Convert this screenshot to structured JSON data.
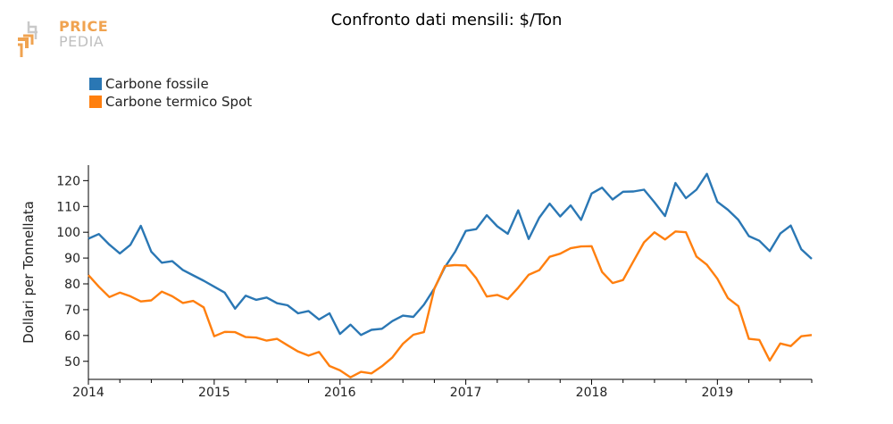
{
  "title": "Confronto dati mensili: $/Ton",
  "logo": {
    "line1": "PRICE",
    "line2": "PEDIA"
  },
  "colors": {
    "series1": "#2a77b4",
    "series2": "#ff7f0e",
    "axis": "#000000",
    "logo_orange": "#f0a350",
    "logo_gray": "#c0c0c0"
  },
  "chart_data": {
    "type": "line",
    "title": "Confronto dati mensili: $/Ton",
    "xlabel": "",
    "ylabel": "Dollari per Tonnellata",
    "xlim": [
      "2014-01",
      "2019-10"
    ],
    "ylim": [
      43,
      126
    ],
    "x_ticks": [
      "2014",
      "2015",
      "2016",
      "2017",
      "2018",
      "2019"
    ],
    "y_ticks": [
      50,
      60,
      70,
      80,
      90,
      100,
      110,
      120
    ],
    "legend_position": "top-left",
    "grid": false,
    "x": [
      "2014-01",
      "2014-02",
      "2014-03",
      "2014-04",
      "2014-05",
      "2014-06",
      "2014-07",
      "2014-08",
      "2014-09",
      "2014-10",
      "2014-11",
      "2014-12",
      "2015-01",
      "2015-02",
      "2015-03",
      "2015-04",
      "2015-05",
      "2015-06",
      "2015-07",
      "2015-08",
      "2015-09",
      "2015-10",
      "2015-11",
      "2015-12",
      "2016-01",
      "2016-02",
      "2016-03",
      "2016-04",
      "2016-05",
      "2016-06",
      "2016-07",
      "2016-08",
      "2016-09",
      "2016-10",
      "2016-11",
      "2016-12",
      "2017-01",
      "2017-02",
      "2017-03",
      "2017-04",
      "2017-05",
      "2017-06",
      "2017-07",
      "2017-08",
      "2017-09",
      "2017-10",
      "2017-11",
      "2017-12",
      "2018-01",
      "2018-02",
      "2018-03",
      "2018-04",
      "2018-05",
      "2018-06",
      "2018-07",
      "2018-08",
      "2018-09",
      "2018-10",
      "2018-11",
      "2018-12",
      "2019-01",
      "2019-02",
      "2019-03",
      "2019-04",
      "2019-05",
      "2019-06",
      "2019-07",
      "2019-08",
      "2019-09",
      "2019-10"
    ],
    "series": [
      {
        "name": "Carbone fossile",
        "values": [
          97.5,
          99.3,
          95.2,
          91.8,
          95.1,
          102.5,
          92.5,
          88.2,
          88.8,
          85.4,
          83.3,
          81.2,
          78.9,
          76.6,
          70.4,
          75.4,
          73.8,
          74.7,
          72.5,
          71.7,
          68.6,
          69.5,
          66.2,
          68.6,
          60.6,
          64.2,
          60.2,
          62.2,
          62.6,
          65.6,
          67.7,
          67.2,
          71.9,
          78.2,
          86.4,
          92.6,
          100.5,
          101.2,
          106.6,
          102.3,
          99.4,
          108.5,
          97.4,
          105.6,
          111.1,
          106.1,
          110.4,
          104.8,
          115.0,
          117.3,
          112.7,
          115.7,
          115.8,
          116.5,
          111.6,
          106.3,
          119.1,
          113.2,
          116.5,
          122.6,
          111.8,
          108.7,
          104.8,
          98.5,
          96.7,
          92.7,
          99.5,
          102.6,
          93.4,
          89.7
        ]
      },
      {
        "name": "Carbone termico Spot",
        "values": [
          83.4,
          78.9,
          74.9,
          76.6,
          75.2,
          73.2,
          73.6,
          77.0,
          75.2,
          72.6,
          73.4,
          70.9,
          59.7,
          61.4,
          61.3,
          59.4,
          59.2,
          58.0,
          58.7,
          56.2,
          53.8,
          52.2,
          53.6,
          48.2,
          46.5,
          43.8,
          45.9,
          45.3,
          48.1,
          51.5,
          56.8,
          60.3,
          61.3,
          78.1,
          86.9,
          87.3,
          87.1,
          82.2,
          75.1,
          75.7,
          74.1,
          78.5,
          83.5,
          85.3,
          90.5,
          91.7,
          93.8,
          94.5,
          94.6,
          84.6,
          80.3,
          81.5,
          88.8,
          96.1,
          100.0,
          97.2,
          100.3,
          100.0,
          90.6,
          87.4,
          82.0,
          74.5,
          71.4,
          58.7,
          58.3,
          50.3,
          56.9,
          55.9,
          59.7,
          60.2
        ]
      }
    ]
  }
}
